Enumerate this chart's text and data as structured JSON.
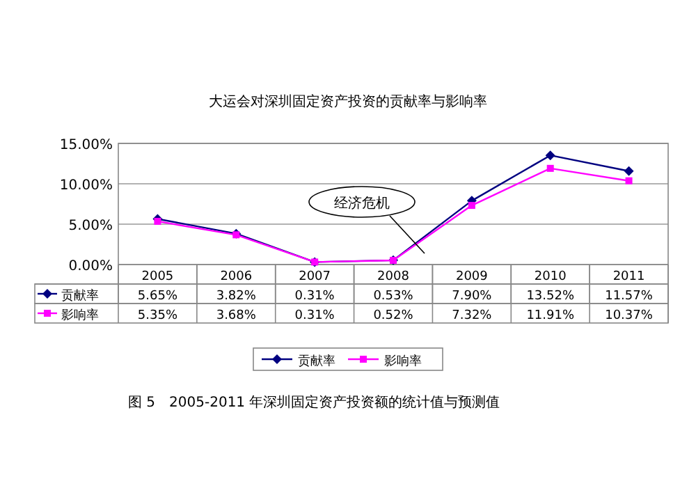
{
  "chart_data": {
    "type": "line",
    "title": "大运会对深圳固定资产投资的贡献率与影响率",
    "categories": [
      "2005",
      "2006",
      "2007",
      "2008",
      "2009",
      "2010",
      "2011"
    ],
    "series": [
      {
        "name": "贡献率",
        "color": "#000080",
        "marker": "diamond",
        "values": [
          5.65,
          3.82,
          0.31,
          0.53,
          7.9,
          13.52,
          11.57
        ],
        "value_labels": [
          "5.65%",
          "3.82%",
          "0.31%",
          "0.53%",
          "7.90%",
          "13.52%",
          "11.57%"
        ]
      },
      {
        "name": "影响率",
        "color": "#ff00ff",
        "marker": "square",
        "values": [
          5.35,
          3.68,
          0.31,
          0.52,
          7.32,
          11.91,
          10.37
        ],
        "value_labels": [
          "5.35%",
          "3.68%",
          "0.31%",
          "0.52%",
          "7.32%",
          "11.91%",
          "10.37%"
        ]
      }
    ],
    "ylim": [
      0,
      15
    ],
    "yticks": [
      {
        "value": 0,
        "label": "0.00%"
      },
      {
        "value": 5,
        "label": "5.00%"
      },
      {
        "value": 10,
        "label": "10.00%"
      },
      {
        "value": 15,
        "label": "15.00%"
      }
    ],
    "grid": "y",
    "legend": "bottom",
    "annotations": [
      "经济危机",
      "图 5　2005-2011 年深圳固定资产投资额的统计值与预测值"
    ]
  }
}
